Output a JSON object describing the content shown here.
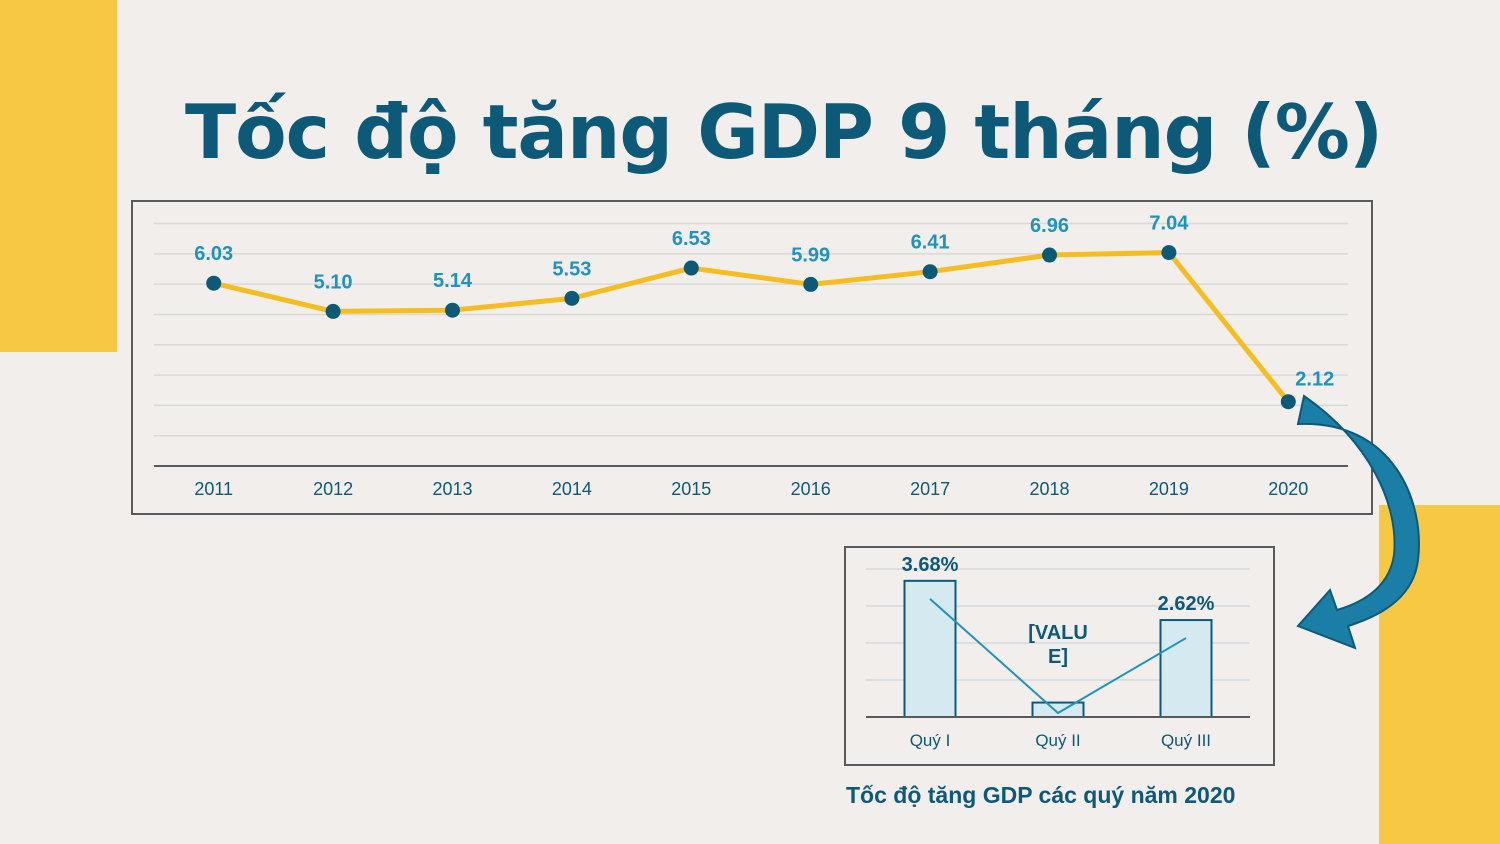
{
  "slide": {
    "title": "Tốc độ tăng GDP 9 tháng (%)",
    "caption": "Tốc độ tăng GDP các quý năm 2020"
  },
  "colors": {
    "accent_yellow": "#f7c843",
    "title_blue": "#0d5a78",
    "label_blue": "#1e93bd",
    "line_gold": "#f5bd1f",
    "marker": "#0d5a78",
    "bar_fill": "#d4e9f0",
    "arrow": "#1a7ea7"
  },
  "chart_data": [
    {
      "type": "line",
      "title": "",
      "categories": [
        "2011",
        "2012",
        "2013",
        "2014",
        "2015",
        "2016",
        "2017",
        "2018",
        "2019",
        "2020"
      ],
      "series": [
        {
          "values": [
            6.03,
            5.1,
            5.14,
            5.53,
            6.53,
            5.99,
            6.41,
            6.96,
            7.04,
            2.12
          ]
        }
      ],
      "data_labels": [
        "6.03",
        "5.10",
        "5.14",
        "5.53",
        "6.53",
        "5.99",
        "6.41",
        "6.96",
        "7.04",
        "2.12"
      ],
      "ylim": [
        0,
        8
      ],
      "grid": true,
      "legend": "none"
    },
    {
      "type": "bar",
      "title": "Tốc độ tăng GDP các quý năm 2020",
      "categories": [
        "Quý I",
        "Quý II",
        "Quý III"
      ],
      "values": [
        3.68,
        0.39,
        2.62
      ],
      "data_labels": [
        "3.68%",
        "[VALUE]",
        "2.62%"
      ],
      "overlay": "line",
      "ylim": [
        0,
        4
      ],
      "grid": true,
      "legend": "none"
    }
  ]
}
